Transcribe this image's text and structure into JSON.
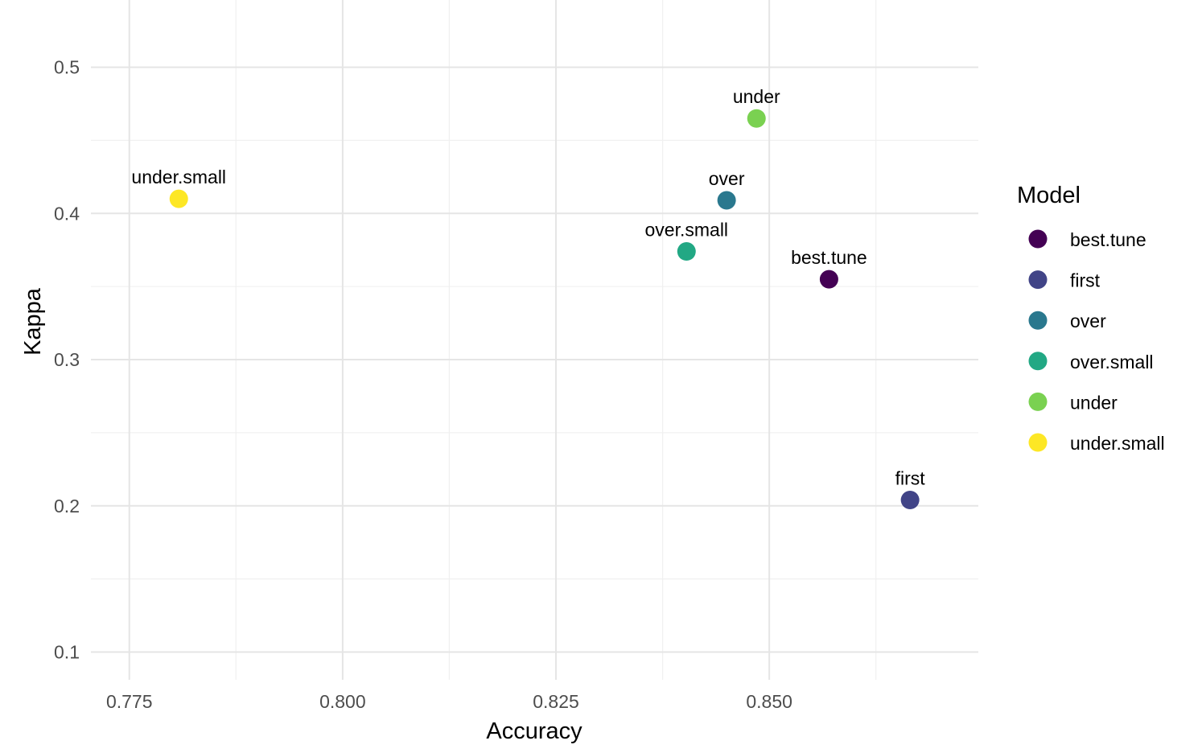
{
  "chart_data": {
    "type": "scatter",
    "title": "",
    "xlabel": "Accuracy",
    "ylabel": "Kappa",
    "xlim": [
      0.7705,
      0.8745
    ],
    "ylim": [
      0.081,
      0.546
    ],
    "x_ticks": [
      0.775,
      0.8,
      0.825,
      0.85
    ],
    "x_tick_labels": [
      "0.775",
      "0.800",
      "0.825",
      "0.850"
    ],
    "y_ticks": [
      0.1,
      0.2,
      0.3,
      0.4,
      0.5
    ],
    "y_tick_labels": [
      "0.1",
      "0.2",
      "0.3",
      "0.4",
      "0.5"
    ],
    "grid": true,
    "legend": {
      "title": "Model",
      "placement": "right",
      "entries": [
        {
          "label": "best.tune",
          "color": "#440154"
        },
        {
          "label": "first",
          "color": "#414487"
        },
        {
          "label": "over",
          "color": "#2A788E"
        },
        {
          "label": "over.small",
          "color": "#22A884"
        },
        {
          "label": "under",
          "color": "#7AD151"
        },
        {
          "label": "under.small",
          "color": "#FDE725"
        }
      ]
    },
    "points": [
      {
        "label": "best.tune",
        "x": 0.857,
        "y": 0.355,
        "color": "#440154"
      },
      {
        "label": "first",
        "x": 0.8665,
        "y": 0.204,
        "color": "#414487"
      },
      {
        "label": "over",
        "x": 0.845,
        "y": 0.409,
        "color": "#2A788E"
      },
      {
        "label": "over.small",
        "x": 0.8403,
        "y": 0.374,
        "color": "#22A884"
      },
      {
        "label": "under",
        "x": 0.8485,
        "y": 0.465,
        "color": "#7AD151"
      },
      {
        "label": "under.small",
        "x": 0.7808,
        "y": 0.41,
        "color": "#FDE725"
      }
    ]
  }
}
